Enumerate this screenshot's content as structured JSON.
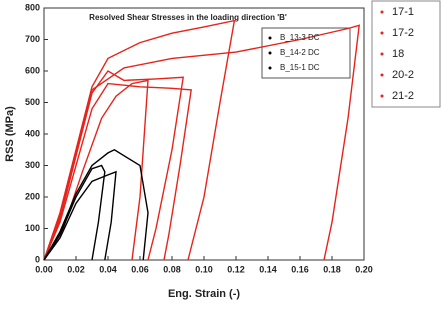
{
  "chart_data": {
    "type": "line",
    "title": "Resolved Shear Stresses in the loading direction 'B'",
    "x_label": "Eng. Strain (-)",
    "y_label": "RSS (MPa)",
    "xlim": [
      0,
      0.2
    ],
    "ylim": [
      0,
      800
    ],
    "xticks": [
      {
        "value": 0,
        "label": "0.00"
      },
      {
        "value": 0.02,
        "label": "0.02"
      },
      {
        "value": 0.04,
        "label": "0.04"
      },
      {
        "value": 0.06,
        "label": "0.06"
      },
      {
        "value": 0.08,
        "label": "0.08"
      },
      {
        "value": 0.1,
        "label": "0.10"
      },
      {
        "value": 0.12,
        "label": "0.12"
      },
      {
        "value": 0.14,
        "label": "0.14"
      },
      {
        "value": 0.16,
        "label": "0.16"
      },
      {
        "value": 0.18,
        "label": "0.18"
      },
      {
        "value": 0.2,
        "label": "0.20"
      }
    ],
    "yticks": [
      0,
      100,
      200,
      300,
      400,
      500,
      600,
      700,
      800
    ],
    "series": [
      {
        "name": "17-1",
        "color": "#e8231b",
        "legend": "outside",
        "x": [
          0,
          0.01,
          0.02,
          0.03,
          0.04,
          0.06,
          0.08,
          0.1,
          0.119,
          0.11,
          0.1,
          0.09
        ],
        "values": [
          0,
          150,
          350,
          550,
          640,
          690,
          720,
          740,
          760,
          500,
          200,
          0
        ]
      },
      {
        "name": "17-2",
        "color": "#e8231b",
        "legend": "outside",
        "x": [
          0,
          0.01,
          0.02,
          0.03,
          0.05,
          0.08,
          0.12,
          0.16,
          0.19,
          0.197,
          0.19,
          0.18,
          0.175
        ],
        "values": [
          0,
          140,
          340,
          540,
          610,
          640,
          660,
          700,
          735,
          745,
          450,
          120,
          0
        ]
      },
      {
        "name": "18",
        "color": "#e8231b",
        "legend": "outside",
        "x": [
          0,
          0.01,
          0.02,
          0.03,
          0.04,
          0.05,
          0.07,
          0.087,
          0.08,
          0.07,
          0.065
        ],
        "values": [
          0,
          130,
          330,
          530,
          600,
          570,
          575,
          580,
          350,
          100,
          0
        ]
      },
      {
        "name": "20-2",
        "color": "#e8231b",
        "legend": "outside",
        "x": [
          0,
          0.01,
          0.02,
          0.03,
          0.04,
          0.06,
          0.08,
          0.092,
          0.085,
          0.078,
          0.075
        ],
        "values": [
          0,
          120,
          300,
          480,
          560,
          550,
          545,
          540,
          300,
          80,
          0
        ]
      },
      {
        "name": "21-2",
        "color": "#e8231b",
        "legend": "outside",
        "x": [
          0,
          0.012,
          0.024,
          0.036,
          0.045,
          0.055,
          0.065,
          0.06,
          0.055
        ],
        "values": [
          0,
          100,
          280,
          450,
          520,
          560,
          570,
          200,
          0
        ]
      },
      {
        "name": "B_13-3 DC",
        "color": "#000000",
        "legend": "inside",
        "x": [
          0,
          0.01,
          0.02,
          0.03,
          0.036,
          0.038,
          0.034,
          0.03
        ],
        "values": [
          0,
          80,
          200,
          290,
          300,
          280,
          120,
          0
        ]
      },
      {
        "name": "B_14-2 DC",
        "color": "#000000",
        "legend": "inside",
        "x": [
          0,
          0.01,
          0.02,
          0.03,
          0.04,
          0.045,
          0.042,
          0.038
        ],
        "values": [
          0,
          70,
          180,
          250,
          270,
          280,
          120,
          0
        ]
      },
      {
        "name": "B_15-1 DC",
        "color": "#000000",
        "legend": "inside",
        "x": [
          0,
          0.01,
          0.02,
          0.03,
          0.04,
          0.044,
          0.06,
          0.065,
          0.062
        ],
        "values": [
          0,
          90,
          210,
          300,
          340,
          350,
          300,
          150,
          0
        ]
      }
    ]
  }
}
